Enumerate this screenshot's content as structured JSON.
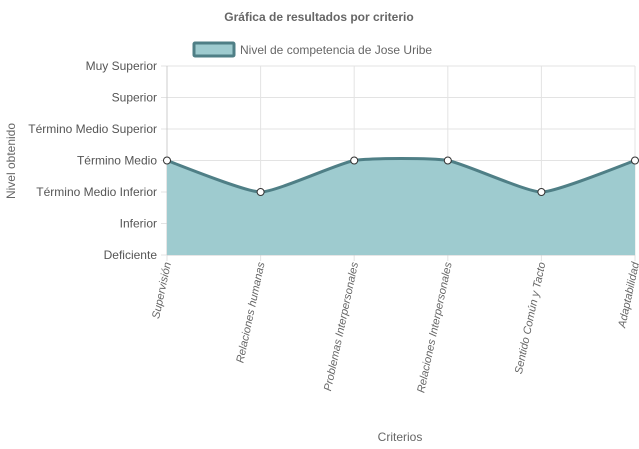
{
  "chart_data": {
    "type": "area",
    "title": "Gráfica de resultados por criterio",
    "xlabel": "Criterios",
    "ylabel": "Nivel obtenido",
    "y_levels": [
      "Deficiente",
      "Inferior",
      "Término Medio Inferior",
      "Término Medio",
      "Término Medio Superior",
      "Superior",
      "Muy Superior"
    ],
    "categories": [
      "Supervisión",
      "Relaciones humanas",
      "Problemas Interpersonales",
      "Relaciones Interpersonales",
      "Sentido Común y Tacto",
      "Adaptabilidad"
    ],
    "series": [
      {
        "name": "Nivel de competencia de Jose Uribe",
        "values": [
          3,
          2,
          3,
          3,
          2,
          3
        ],
        "line_color": "#4f7f86",
        "fill_color": "#9ecbcf"
      }
    ],
    "ylim": [
      0,
      6
    ],
    "grid": true,
    "legend_position": "top",
    "smooth": true
  }
}
